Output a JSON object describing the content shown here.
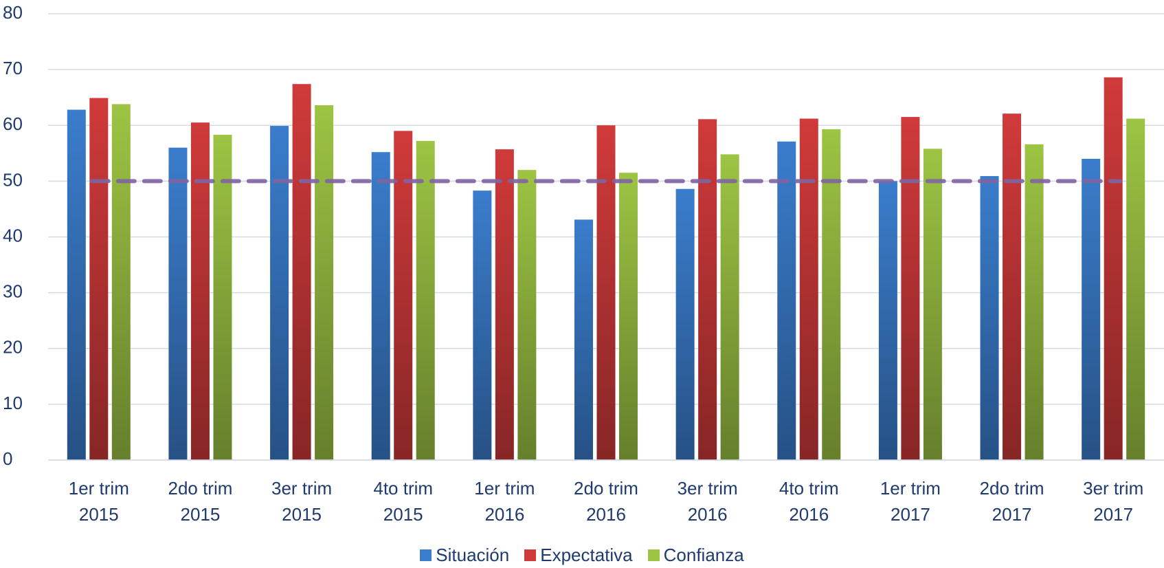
{
  "chart_data": {
    "type": "bar",
    "categories": [
      "1er trim 2015",
      "2do trim 2015",
      "3er trim 2015",
      "4to trim 2015",
      "1er trim 2016",
      "2do trim 2016",
      "3er trim 2016",
      "4to trim 2016",
      "1er trim 2017",
      "2do trim 2017",
      "3er trim 2017"
    ],
    "series": [
      {
        "name": "Situación",
        "color": "#3a7dcc",
        "values": [
          62.8,
          56,
          59.9,
          55.2,
          48.3,
          43.1,
          48.6,
          57.1,
          50,
          50.9,
          54
        ]
      },
      {
        "name": "Expectativa",
        "color": "#d03a3a",
        "values": [
          64.9,
          60.5,
          67.4,
          59,
          55.7,
          60,
          61.1,
          61.2,
          61.5,
          62.1,
          68.6
        ]
      },
      {
        "name": "Confianza",
        "color": "#9dc443",
        "values": [
          63.8,
          58.3,
          63.6,
          57.2,
          52,
          51.5,
          54.8,
          59.3,
          55.8,
          56.6,
          61.2
        ]
      }
    ],
    "reference_line": {
      "value": 50,
      "color": "#8064a2"
    },
    "ylim": [
      0,
      80
    ],
    "yticks": [
      0,
      10,
      20,
      30,
      40,
      50,
      60,
      70,
      80
    ],
    "grid": true,
    "legend": "bottom"
  }
}
